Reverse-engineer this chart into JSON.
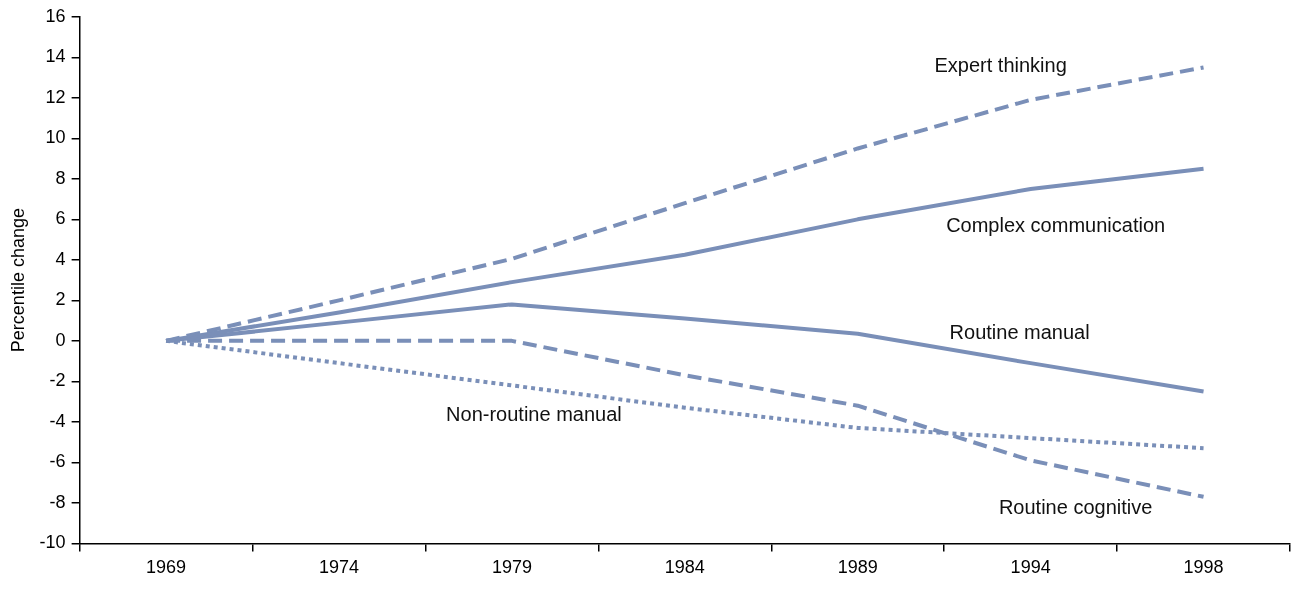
{
  "chart_data": {
    "type": "line",
    "ylabel": "Percentile change",
    "categories": [
      "1969",
      "1974",
      "1979",
      "1984",
      "1989",
      "1994",
      "1998"
    ],
    "series": [
      {
        "name": "Expert thinking",
        "color": "#7a8fb8",
        "line_style": "dashed",
        "values": [
          0,
          2.0,
          4.05,
          6.8,
          9.5,
          11.9,
          13.5
        ]
      },
      {
        "name": "Complex communication",
        "color": "#7a8fb8",
        "line_style": "solid",
        "values": [
          0,
          1.4,
          2.9,
          4.25,
          6.0,
          7.5,
          8.5
        ]
      },
      {
        "name": "Routine manual",
        "color": "#7a8fb8",
        "line_style": "solid",
        "values": [
          0,
          0.9,
          1.8,
          1.1,
          0.35,
          -1.1,
          -2.5
        ]
      },
      {
        "name": "Routine cognitive",
        "color": "#7a8fb8",
        "line_style": "dashed",
        "values": [
          0,
          0,
          0,
          -1.7,
          -3.2,
          -5.9,
          -7.7
        ]
      },
      {
        "name": "Non-routine manual",
        "color": "#7a8fb8",
        "line_style": "dotted",
        "values": [
          0,
          -1.1,
          -2.2,
          -3.3,
          -4.3,
          -4.8,
          -5.3
        ]
      }
    ],
    "ylim": [
      -10,
      16
    ],
    "yticks": [
      -10,
      -8,
      -6,
      -4,
      -2,
      0,
      2,
      4,
      6,
      8,
      10,
      12,
      14,
      16
    ],
    "grid": false,
    "legend": false,
    "marker": "none"
  }
}
